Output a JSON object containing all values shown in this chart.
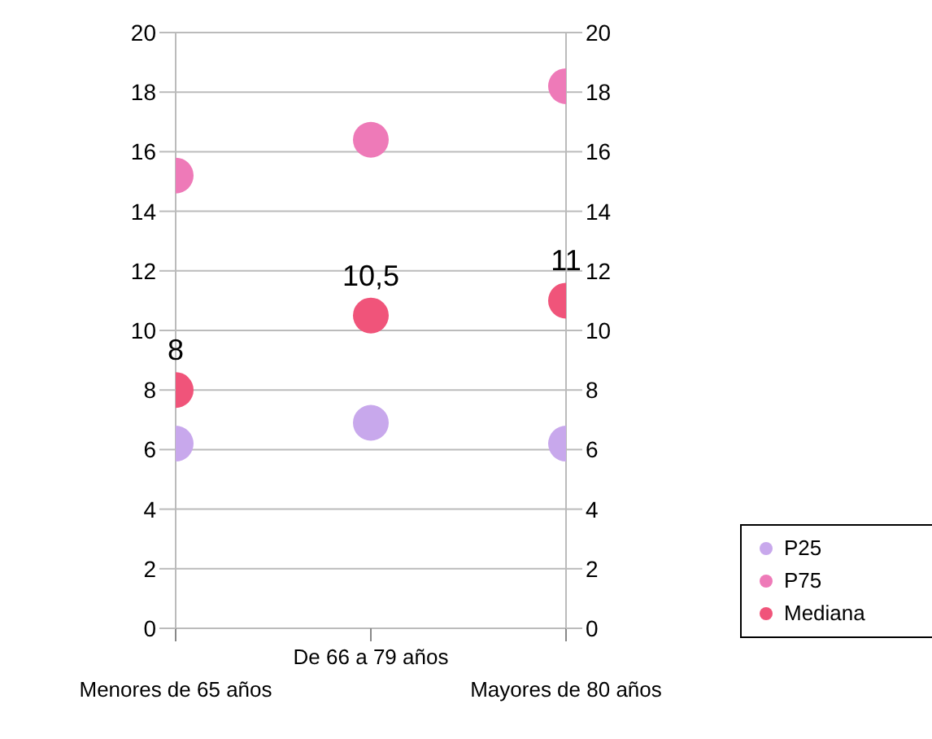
{
  "chart_data": {
    "type": "scatter",
    "categories": [
      "Menores de 65 años",
      "De 66 a 79 años",
      "Mayores de 80 años"
    ],
    "series": [
      {
        "name": "P25",
        "color": "#c8a8ec",
        "values": [
          6.2,
          6.9,
          6.2
        ]
      },
      {
        "name": "P75",
        "color": "#ee7ab8",
        "values": [
          15.2,
          16.4,
          18.2
        ]
      },
      {
        "name": "Mediana",
        "color": "#f0547a",
        "values": [
          8,
          10.5,
          11
        ],
        "value_labels": [
          "8",
          "10,5",
          "11"
        ]
      }
    ],
    "ylim": [
      0,
      20
    ],
    "yticks": [
      0,
      2,
      4,
      6,
      8,
      10,
      12,
      14,
      16,
      18,
      20
    ],
    "y2lim": [
      0,
      20
    ],
    "y2ticks": [
      0,
      2,
      4,
      6,
      8,
      10,
      12,
      14,
      16,
      18,
      20
    ],
    "grid": "y",
    "legend": "bottom right",
    "marker": "circle"
  }
}
